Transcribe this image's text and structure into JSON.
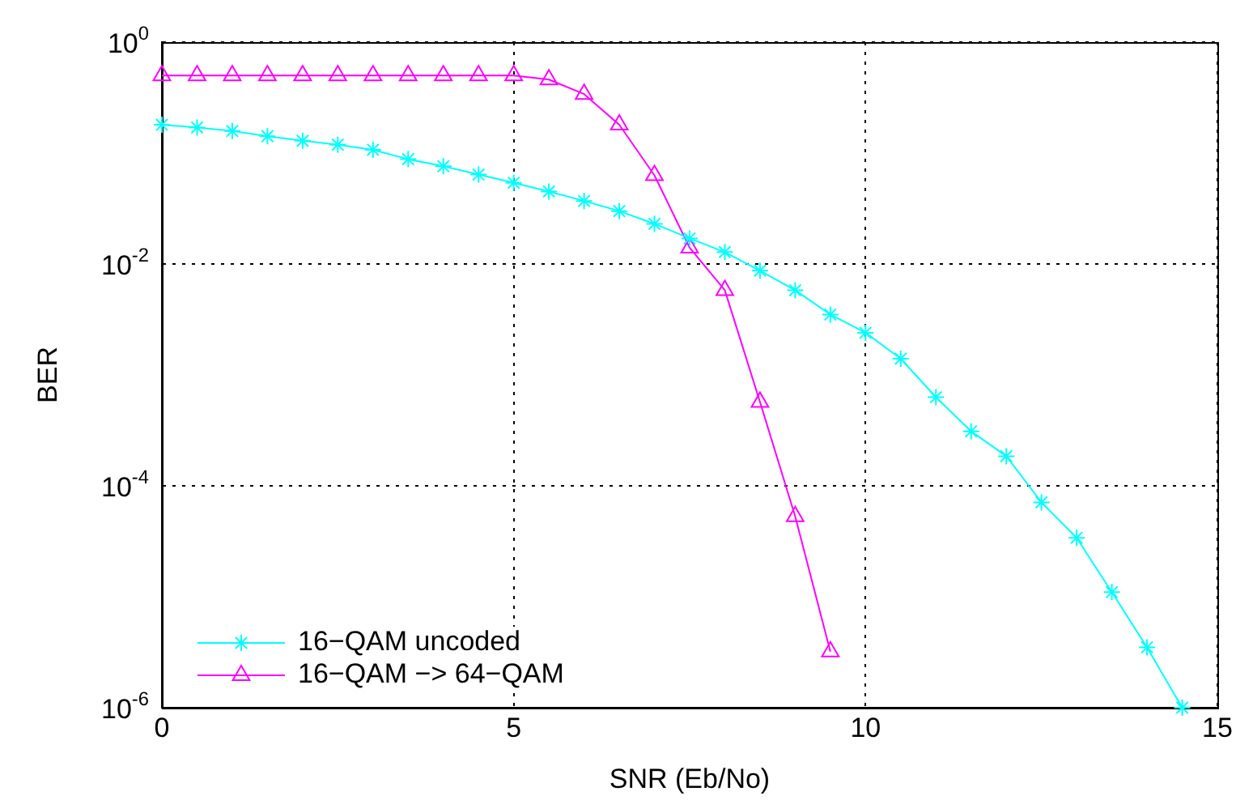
{
  "chart_data": {
    "type": "line",
    "xlabel": "SNR (Eb/No)",
    "ylabel": "BER",
    "log": "y",
    "grid": true,
    "legend": "bottom left",
    "line_style": "solid",
    "xlim": [
      0,
      15
    ],
    "xticks": [
      0,
      5,
      10,
      15
    ],
    "ylim": [
      1e-06,
      1
    ],
    "yticks": [
      {
        "value": 1e-06,
        "label": "10$^{-6}$"
      },
      {
        "value": 0.0001,
        "label": "10$^{-4}$"
      },
      {
        "value": 0.01,
        "label": "10$^{-2}$"
      },
      {
        "value": 1,
        "label": "10$^{0}$"
      }
    ],
    "series": [
      {
        "name": "16−QAM uncoded",
        "color": "#00ffff",
        "marker": "cross",
        "x": [
          0,
          0.5,
          1,
          1.5,
          2,
          2.5,
          3,
          3.5,
          4,
          4.5,
          5,
          5.5,
          6,
          6.5,
          7,
          7.5,
          8,
          8.5,
          9,
          9.5,
          10,
          10.5,
          11,
          11.5,
          12,
          12.5,
          13,
          13.5,
          14,
          14.5
        ],
        "values": [
          0.18,
          0.17,
          0.158,
          0.142,
          0.129,
          0.119,
          0.107,
          0.088,
          0.076,
          0.064,
          0.054,
          0.045,
          0.037,
          0.03,
          0.023,
          0.017,
          0.0128,
          0.0087,
          0.0058,
          0.0035,
          0.0024,
          0.0014,
          0.00063,
          0.00031,
          0.000185,
          7.1e-05,
          3.4e-05,
          1.1e-05,
          3.5e-06,
          1e-06
        ]
      },
      {
        "name": "16−QAM −> 64−QAM",
        "color": "#ff00ff",
        "marker": "triangle",
        "x": [
          0,
          0.5,
          1,
          1.5,
          2,
          2.5,
          3,
          3.5,
          4,
          4.5,
          5,
          5.5,
          6,
          6.5,
          7,
          7.5,
          8,
          8.5,
          9,
          9.5
        ],
        "values": [
          0.5,
          0.5,
          0.5,
          0.5,
          0.5,
          0.5,
          0.5,
          0.5,
          0.5,
          0.5,
          0.5,
          0.46,
          0.34,
          0.18,
          0.063,
          0.014,
          0.0058,
          0.00057,
          5.3e-05,
          3.2e-06
        ]
      }
    ]
  }
}
